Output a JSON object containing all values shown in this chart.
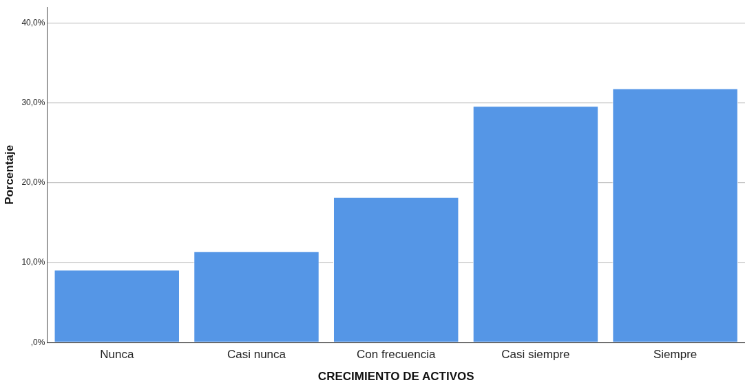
{
  "chart_data": {
    "type": "bar",
    "xlabel": "CRECIMIENTO DE ACTIVOS",
    "ylabel": "Porcentaje",
    "categories": [
      "Nunca",
      "Casi nunca",
      "Con frecuencia",
      "Casi siempre",
      "Siempre"
    ],
    "values": [
      9.1,
      11.4,
      18.2,
      29.6,
      31.8
    ],
    "color": "#5596e6",
    "ylim": [
      0,
      42
    ],
    "yticks": [
      {
        "value": 0,
        "label": ",0%"
      },
      {
        "value": 10,
        "label": "10,0%"
      },
      {
        "value": 20,
        "label": "20,0%"
      },
      {
        "value": 30,
        "label": "30,0%"
      },
      {
        "value": 40,
        "label": "40,0%"
      }
    ],
    "grid": "y"
  }
}
